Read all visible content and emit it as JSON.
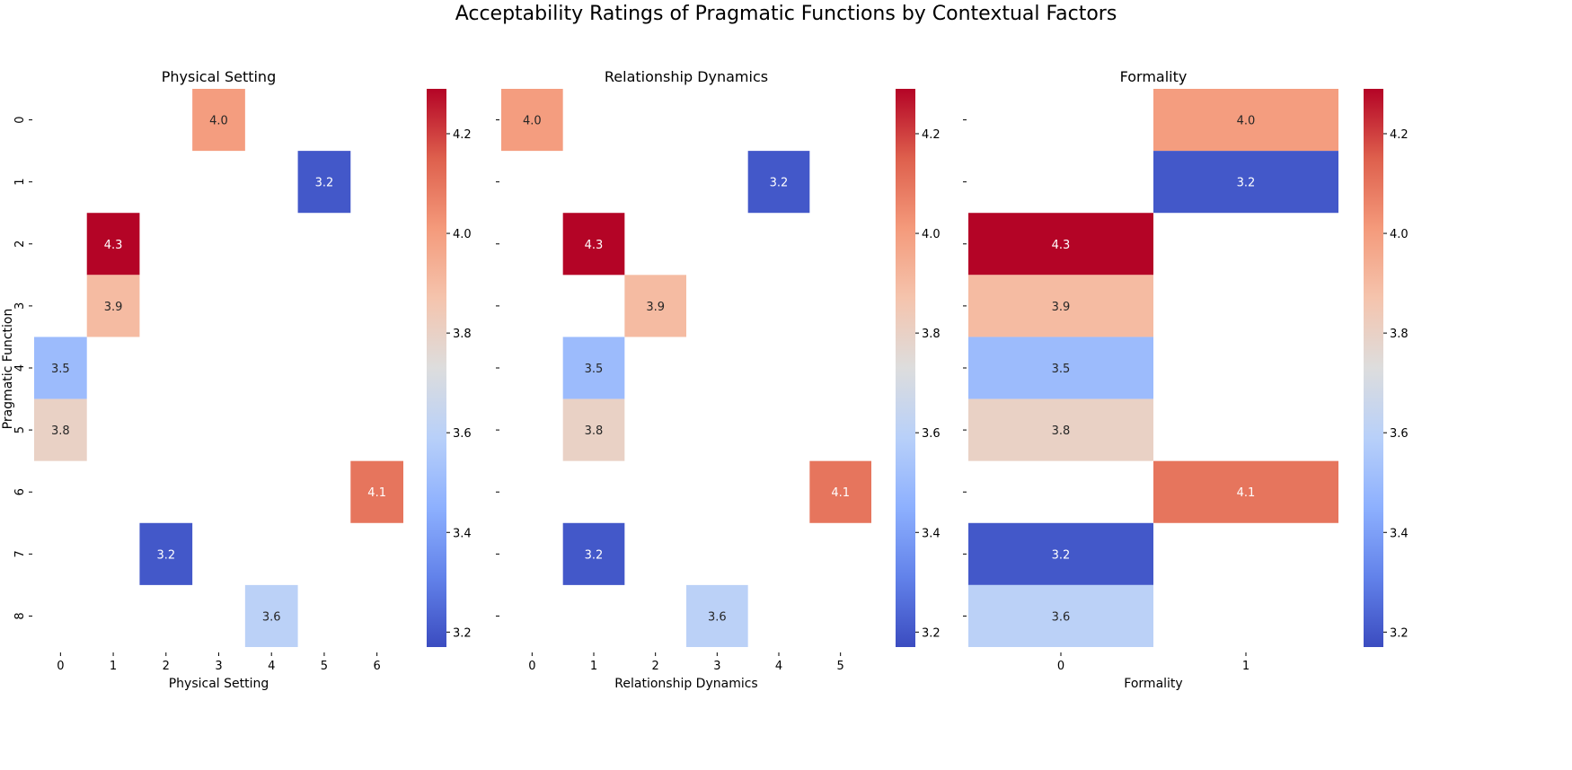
{
  "chart_data": {
    "type": "heatmap",
    "title": "Acceptability Ratings of Pragmatic Functions by Contextual Factors",
    "colormap": "coolwarm",
    "color_range": [
      3.17,
      4.29
    ],
    "colors": {
      "low": "#3b4cc0",
      "mid": "#dddddd",
      "high": "#b40426"
    },
    "row_labels": [
      "0",
      "1",
      "2",
      "3",
      "4",
      "5",
      "6",
      "7",
      "8"
    ],
    "ylabel": "Pragmatic Function",
    "panels": [
      {
        "title": "Physical Setting",
        "xlabel": "Physical Setting",
        "col_labels": [
          "0",
          "1",
          "2",
          "3",
          "4",
          "5",
          "6"
        ],
        "cells": [
          {
            "row": 0,
            "col": 3,
            "value": 4.0
          },
          {
            "row": 1,
            "col": 5,
            "value": 3.2
          },
          {
            "row": 2,
            "col": 1,
            "value": 4.3
          },
          {
            "row": 3,
            "col": 1,
            "value": 3.9
          },
          {
            "row": 4,
            "col": 0,
            "value": 3.5
          },
          {
            "row": 5,
            "col": 0,
            "value": 3.8
          },
          {
            "row": 6,
            "col": 6,
            "value": 4.1
          },
          {
            "row": 7,
            "col": 2,
            "value": 3.2
          },
          {
            "row": 8,
            "col": 4,
            "value": 3.6
          }
        ],
        "show_row_labels": true,
        "colorbar_ticks": [
          "3.2",
          "3.4",
          "3.6",
          "3.8",
          "4.0",
          "4.2"
        ]
      },
      {
        "title": "Relationship Dynamics",
        "xlabel": "Relationship Dynamics",
        "col_labels": [
          "0",
          "1",
          "2",
          "3",
          "4",
          "5"
        ],
        "cells": [
          {
            "row": 0,
            "col": 0,
            "value": 4.0
          },
          {
            "row": 1,
            "col": 4,
            "value": 3.2
          },
          {
            "row": 2,
            "col": 1,
            "value": 4.3
          },
          {
            "row": 3,
            "col": 2,
            "value": 3.9
          },
          {
            "row": 4,
            "col": 1,
            "value": 3.5
          },
          {
            "row": 5,
            "col": 1,
            "value": 3.8
          },
          {
            "row": 6,
            "col": 5,
            "value": 4.1
          },
          {
            "row": 7,
            "col": 1,
            "value": 3.2
          },
          {
            "row": 8,
            "col": 3,
            "value": 3.6
          }
        ],
        "show_row_labels": false,
        "colorbar_ticks": [
          "3.2",
          "3.4",
          "3.6",
          "3.8",
          "4.0",
          "4.2"
        ]
      },
      {
        "title": "Formality",
        "xlabel": "Formality",
        "col_labels": [
          "0",
          "1"
        ],
        "cells": [
          {
            "row": 0,
            "col": 1,
            "value": 4.0
          },
          {
            "row": 1,
            "col": 1,
            "value": 3.2
          },
          {
            "row": 2,
            "col": 0,
            "value": 4.3
          },
          {
            "row": 3,
            "col": 0,
            "value": 3.9
          },
          {
            "row": 4,
            "col": 0,
            "value": 3.5
          },
          {
            "row": 5,
            "col": 0,
            "value": 3.8
          },
          {
            "row": 6,
            "col": 1,
            "value": 4.1
          },
          {
            "row": 7,
            "col": 0,
            "value": 3.2
          },
          {
            "row": 8,
            "col": 0,
            "value": 3.6
          }
        ],
        "show_row_labels": false,
        "colorbar_ticks": [
          "3.2",
          "3.4",
          "3.6",
          "3.8",
          "4.0",
          "4.2"
        ]
      }
    ]
  }
}
